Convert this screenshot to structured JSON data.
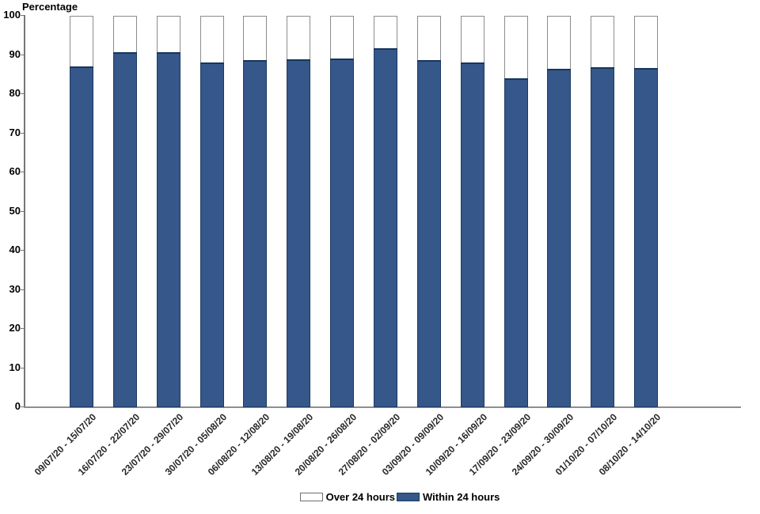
{
  "title": "Percentage",
  "colors": {
    "within_fill": "#35578A",
    "within_edge": "#1C3A61",
    "over_fill": "#FFFFFF",
    "over_edge": "#8C8C8C",
    "axis": "#767676",
    "text": "#000000"
  },
  "legend": {
    "items": [
      {
        "label": "Over 24 hours",
        "color": "#FFFFFF",
        "border": "#6F6F6F"
      },
      {
        "label": "Within 24 hours",
        "color": "#35578A",
        "border": "#1C3A61"
      }
    ]
  },
  "y_axis": {
    "title": "Percentage",
    "tick_labels": [
      "0",
      "10",
      "20",
      "30",
      "40",
      "50",
      "60",
      "70",
      "80",
      "90",
      "100"
    ]
  },
  "chart_data": {
    "type": "bar",
    "stacked": true,
    "title": "Percentage",
    "xlabel": "",
    "ylabel": "Percentage",
    "ylim": [
      0,
      100
    ],
    "y_ticks": [
      0,
      10,
      20,
      30,
      40,
      50,
      60,
      70,
      80,
      90,
      100
    ],
    "grid": false,
    "legend_position": "bottom",
    "categories": [
      "09/07/20 - 15/07/20",
      "16/07/20 - 22/07/20",
      "23/07/20 - 29/07/20",
      "30/07/20 - 05/08/20",
      "06/08/20 - 12/08/20",
      "13/08/20 - 19/08/20",
      "20/08/20 - 26/08/20",
      "27/08/20 - 02/09/20",
      "03/09/20 - 09/09/20",
      "10/09/20 - 16/09/20",
      "17/09/20 - 23/09/20",
      "24/09/20 - 30/09/20",
      "01/10/20 - 07/10/20",
      "08/10/20 - 14/10/20"
    ],
    "series": [
      {
        "name": "Within 24 hours",
        "color": "#35578A",
        "values": [
          87.0,
          90.7,
          90.7,
          88.1,
          88.7,
          88.8,
          89.0,
          91.8,
          88.6,
          88.0,
          84.0,
          86.4,
          86.8,
          86.6
        ]
      },
      {
        "name": "Over 24 hours",
        "color": "#FFFFFF",
        "values": [
          13.0,
          9.3,
          9.3,
          11.9,
          11.3,
          11.2,
          11.0,
          8.2,
          11.4,
          12.0,
          16.0,
          13.6,
          13.2,
          13.4
        ]
      }
    ]
  }
}
